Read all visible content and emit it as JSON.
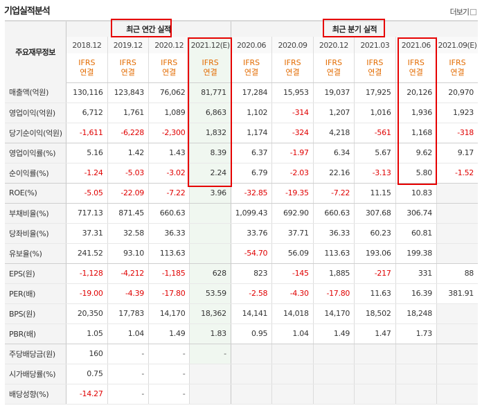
{
  "title": "기업실적분석",
  "more": {
    "label": "더보기"
  },
  "headers": {
    "label_column": "주요재무정보",
    "annual_group": "최근 연간 실적",
    "quarter_group": "최근 분기 실적",
    "annual_periods": [
      "2018.12",
      "2019.12",
      "2020.12",
      "2021.12(E)"
    ],
    "quarter_periods": [
      "2020.06",
      "2020.09",
      "2020.12",
      "2021.03",
      "2021.06",
      "2021.09(E)"
    ],
    "basis_top": "IFRS",
    "basis_bottom": "연결"
  },
  "rows": [
    {
      "label": "매출액(억원)",
      "values": [
        "130,116",
        "123,843",
        "76,062",
        "81,771",
        "17,284",
        "15,953",
        "19,037",
        "17,925",
        "20,126",
        "20,970"
      ]
    },
    {
      "label": "영업이익(억원)",
      "values": [
        "6,712",
        "1,761",
        "1,089",
        "6,863",
        "1,102",
        "-314",
        "1,207",
        "1,016",
        "1,936",
        "1,923"
      ]
    },
    {
      "label": "당기순이익(억원)",
      "values": [
        "-1,611",
        "-6,228",
        "-2,300",
        "1,832",
        "1,174",
        "-324",
        "4,218",
        "-561",
        "1,168",
        "-318"
      ]
    },
    {
      "label": "영업이익률(%)",
      "values": [
        "5.16",
        "1.42",
        "1.43",
        "8.39",
        "6.37",
        "-1.97",
        "6.34",
        "5.67",
        "9.62",
        "9.17"
      ]
    },
    {
      "label": "순이익률(%)",
      "values": [
        "-1.24",
        "-5.03",
        "-3.02",
        "2.24",
        "6.79",
        "-2.03",
        "22.16",
        "-3.13",
        "5.80",
        "-1.52"
      ]
    },
    {
      "label": "ROE(%)",
      "values": [
        "-5.05",
        "-22.09",
        "-7.22",
        "3.96",
        "-32.85",
        "-19.35",
        "-7.22",
        "11.15",
        "10.83",
        ""
      ]
    },
    {
      "label": "부채비율(%)",
      "values": [
        "717.13",
        "871.45",
        "660.63",
        "",
        "1,099.43",
        "692.90",
        "660.63",
        "307.68",
        "306.74",
        ""
      ]
    },
    {
      "label": "당좌비율(%)",
      "values": [
        "37.31",
        "32.58",
        "36.33",
        "",
        "33.76",
        "37.71",
        "36.33",
        "60.23",
        "60.81",
        ""
      ]
    },
    {
      "label": "유보율(%)",
      "values": [
        "241.52",
        "93.10",
        "113.63",
        "",
        "-54.70",
        "56.09",
        "113.63",
        "193.06",
        "199.38",
        ""
      ]
    },
    {
      "label": "EPS(원)",
      "values": [
        "-1,128",
        "-4,212",
        "-1,185",
        "628",
        "823",
        "-145",
        "1,885",
        "-217",
        "331",
        "88"
      ]
    },
    {
      "label": "PER(배)",
      "values": [
        "-19.00",
        "-4.39",
        "-17.80",
        "53.59",
        "-2.58",
        "-4.30",
        "-17.80",
        "11.63",
        "16.39",
        "381.91"
      ]
    },
    {
      "label": "BPS(원)",
      "values": [
        "20,350",
        "17,783",
        "14,170",
        "18,362",
        "14,141",
        "14,018",
        "14,170",
        "18,502",
        "18,248",
        ""
      ]
    },
    {
      "label": "PBR(배)",
      "values": [
        "1.05",
        "1.04",
        "1.49",
        "1.83",
        "0.95",
        "1.04",
        "1.49",
        "1.47",
        "1.73",
        ""
      ]
    },
    {
      "label": "주당배당금(원)",
      "values": [
        "160",
        "-",
        "-",
        "-",
        "",
        "",
        "",
        "",
        "",
        ""
      ]
    },
    {
      "label": "시가배당률(%)",
      "values": [
        "0.75",
        "-",
        "-",
        "",
        "",
        "",
        "",
        "",
        "",
        ""
      ]
    },
    {
      "label": "배당성향(%)",
      "values": [
        "-14.27",
        "-",
        "-",
        "",
        "",
        "",
        "",
        "",
        "",
        ""
      ]
    }
  ],
  "colors": {
    "negative": "#e00000",
    "basis": "#e36b00",
    "highlight_box": "#e60000"
  }
}
